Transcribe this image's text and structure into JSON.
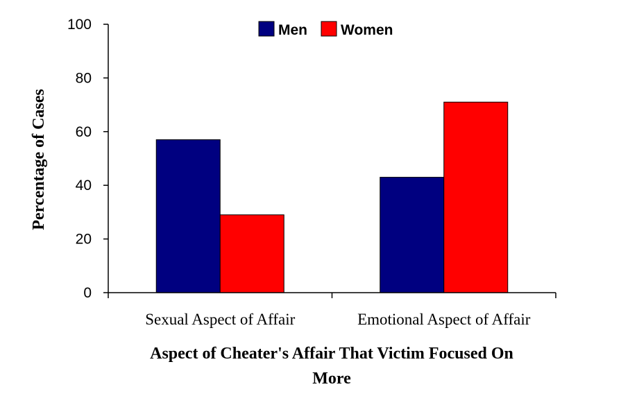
{
  "chart_data": {
    "type": "bar",
    "categories": [
      "Sexual Aspect of Affair",
      "Emotional Aspect of Affair"
    ],
    "series": [
      {
        "name": "Men",
        "values": [
          57,
          43
        ],
        "color": "#000080"
      },
      {
        "name": "Women",
        "values": [
          29,
          71
        ],
        "color": "#ff0000"
      }
    ],
    "yticks": [
      "0",
      "20",
      "40",
      "60",
      "80",
      "100"
    ],
    "ylim": [
      0,
      100
    ],
    "ylabel": "Percentage of Cases",
    "xlabel_lines": [
      "Aspect of Cheater's Affair That Victim Focused On",
      "More"
    ],
    "legend_position": "top-center",
    "grid": false
  }
}
